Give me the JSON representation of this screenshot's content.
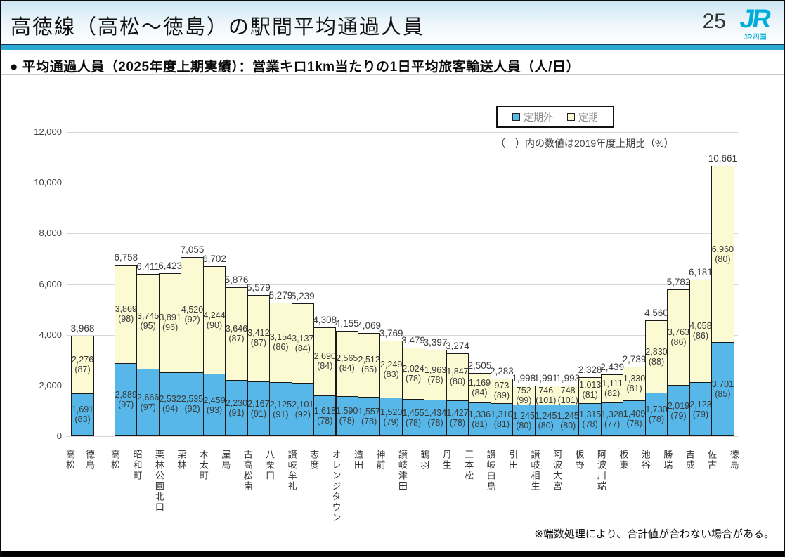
{
  "header": {
    "title": "高徳線（高松～徳島）の駅間平均通過人員",
    "page_number": "25",
    "logo_text": "JR",
    "logo_subtext": "JR四国"
  },
  "subtitle": "● 平均通過人員（2025年度上期実績）：営業キロ1km当たりの1日平均旅客輸送人員（人/日）",
  "legend": {
    "items": [
      {
        "label": "定期外",
        "color": "#56B7E8"
      },
      {
        "label": "定期",
        "color": "#FBFAD2"
      }
    ]
  },
  "paren_note": "（　）内の数値は2019年度上期比（%）",
  "footnote": "※端数処理により、合計値が合わない場合がある。",
  "colors": {
    "accent_teal": "#2BABD4",
    "bar_blue": "#56B7E8",
    "bar_yellow": "#FBFAD2",
    "grid": "#D9D9D9",
    "logo_cyan": "#00ADD8"
  },
  "chart_data": {
    "type": "bar",
    "stacked": true,
    "title": "高徳線（高松～徳島）の駅間平均通過人員",
    "unit": "人/日",
    "ylim": [
      0,
      12000
    ],
    "yticks": [
      0,
      2000,
      4000,
      6000,
      8000,
      10000,
      12000
    ],
    "grid": true,
    "legend_position": "top-right",
    "series_names": [
      "定期外",
      "定期"
    ],
    "percent_note": "（　）内の数値は2019年度上期比（%）",
    "overall": {
      "station": "高松～徳島",
      "stations": [
        "高松",
        "徳島"
      ],
      "total": 3968,
      "non_commuter": 1691,
      "non_commuter_ratio": 83,
      "commuter": 2276,
      "commuter_ratio": 87
    },
    "station_labels": [
      "高松",
      "昭和町",
      "栗林公園北口",
      "栗林",
      "木太町",
      "屋島",
      "古高松南",
      "八栗口",
      "讃岐牟礼",
      "志度",
      "オレンジタウン",
      "造田",
      "神前",
      "讃岐津田",
      "鶴羽",
      "丹生",
      "三本松",
      "讃岐白鳥",
      "引田",
      "讃岐相生",
      "阿波大宮",
      "板野",
      "阿波川端",
      "板東",
      "池谷",
      "勝瑞",
      "吉成",
      "佐古",
      "徳島"
    ],
    "segments": [
      {
        "station": "高松",
        "total": 6758,
        "non_commuter": 2889,
        "non_commuter_ratio": 97,
        "commuter": 3869,
        "commuter_ratio": 98
      },
      {
        "station": "昭和町",
        "total": 6411,
        "non_commuter": 2666,
        "non_commuter_ratio": 97,
        "commuter": 3745,
        "commuter_ratio": 95
      },
      {
        "station": "栗林公園北口",
        "total": 6423,
        "non_commuter": 2532,
        "non_commuter_ratio": 94,
        "commuter": 3891,
        "commuter_ratio": 96
      },
      {
        "station": "栗林",
        "total": 7055,
        "non_commuter": 2535,
        "non_commuter_ratio": 92,
        "commuter": 4520,
        "commuter_ratio": 92
      },
      {
        "station": "木太町",
        "total": 6702,
        "non_commuter": 2459,
        "non_commuter_ratio": 93,
        "commuter": 4244,
        "commuter_ratio": 90
      },
      {
        "station": "屋島",
        "total": 5876,
        "non_commuter": 2230,
        "non_commuter_ratio": 91,
        "commuter": 3646,
        "commuter_ratio": 87
      },
      {
        "station": "古高松南",
        "total": 5579,
        "non_commuter": 2167,
        "non_commuter_ratio": 91,
        "commuter": 3412,
        "commuter_ratio": 87
      },
      {
        "station": "八栗口",
        "total": 5279,
        "non_commuter": 2125,
        "non_commuter_ratio": 91,
        "commuter": 3154,
        "commuter_ratio": 86
      },
      {
        "station": "讃岐牟礼",
        "total": 5239,
        "non_commuter": 2101,
        "non_commuter_ratio": 92,
        "commuter": 3137,
        "commuter_ratio": 84
      },
      {
        "station": "志度",
        "total": 4308,
        "non_commuter": 1618,
        "non_commuter_ratio": 78,
        "commuter": 2690,
        "commuter_ratio": 84
      },
      {
        "station": "オレンジタウン",
        "total": 4155,
        "non_commuter": 1590,
        "non_commuter_ratio": 78,
        "commuter": 2565,
        "commuter_ratio": 84
      },
      {
        "station": "造田",
        "total": 4069,
        "non_commuter": 1557,
        "non_commuter_ratio": 78,
        "commuter": 2512,
        "commuter_ratio": 85
      },
      {
        "station": "神前",
        "total": 3769,
        "non_commuter": 1520,
        "non_commuter_ratio": 79,
        "commuter": 2249,
        "commuter_ratio": 83
      },
      {
        "station": "讃岐津田",
        "total": 3479,
        "non_commuter": 1455,
        "non_commuter_ratio": 78,
        "commuter": 2024,
        "commuter_ratio": 78
      },
      {
        "station": "鶴羽",
        "total": 3397,
        "non_commuter": 1434,
        "non_commuter_ratio": 78,
        "commuter": 1963,
        "commuter_ratio": 78
      },
      {
        "station": "丹生",
        "total": 3274,
        "non_commuter": 1427,
        "non_commuter_ratio": 78,
        "commuter": 1847,
        "commuter_ratio": 80
      },
      {
        "station": "三本松",
        "total": 2505,
        "non_commuter": 1336,
        "non_commuter_ratio": 81,
        "commuter": 1169,
        "commuter_ratio": 84
      },
      {
        "station": "讃岐白鳥",
        "total": 2283,
        "non_commuter": 1310,
        "non_commuter_ratio": 81,
        "commuter": 973,
        "commuter_ratio": 89
      },
      {
        "station": "引田",
        "total": 1998,
        "non_commuter": 1245,
        "non_commuter_ratio": 80,
        "commuter": 752,
        "commuter_ratio": 99
      },
      {
        "station": "讃岐相生",
        "total": 1991,
        "non_commuter": 1245,
        "non_commuter_ratio": 80,
        "commuter": 746,
        "commuter_ratio": 101
      },
      {
        "station": "阿波大宮",
        "total": 1993,
        "non_commuter": 1245,
        "non_commuter_ratio": 80,
        "commuter": 748,
        "commuter_ratio": 101
      },
      {
        "station": "板野",
        "total": 2328,
        "non_commuter": 1315,
        "non_commuter_ratio": 78,
        "commuter": 1013,
        "commuter_ratio": 81
      },
      {
        "station": "阿波川端",
        "total": 2439,
        "non_commuter": 1328,
        "non_commuter_ratio": 77,
        "commuter": 1111,
        "commuter_ratio": 82
      },
      {
        "station": "板東",
        "total": 2739,
        "non_commuter": 1409,
        "non_commuter_ratio": 78,
        "commuter": 1330,
        "commuter_ratio": 81
      },
      {
        "station": "池谷",
        "total": 4560,
        "non_commuter": 1730,
        "non_commuter_ratio": 78,
        "commuter": 2830,
        "commuter_ratio": 88
      },
      {
        "station": "勝瑞",
        "total": 5782,
        "non_commuter": 2019,
        "non_commuter_ratio": 79,
        "commuter": 3763,
        "commuter_ratio": 86
      },
      {
        "station": "吉成",
        "total": 6181,
        "non_commuter": 2123,
        "non_commuter_ratio": 79,
        "commuter": 4058,
        "commuter_ratio": 86
      },
      {
        "station": "佐古",
        "total": 10661,
        "non_commuter": 3701,
        "non_commuter_ratio": 85,
        "commuter": 6960,
        "commuter_ratio": 80
      }
    ]
  }
}
